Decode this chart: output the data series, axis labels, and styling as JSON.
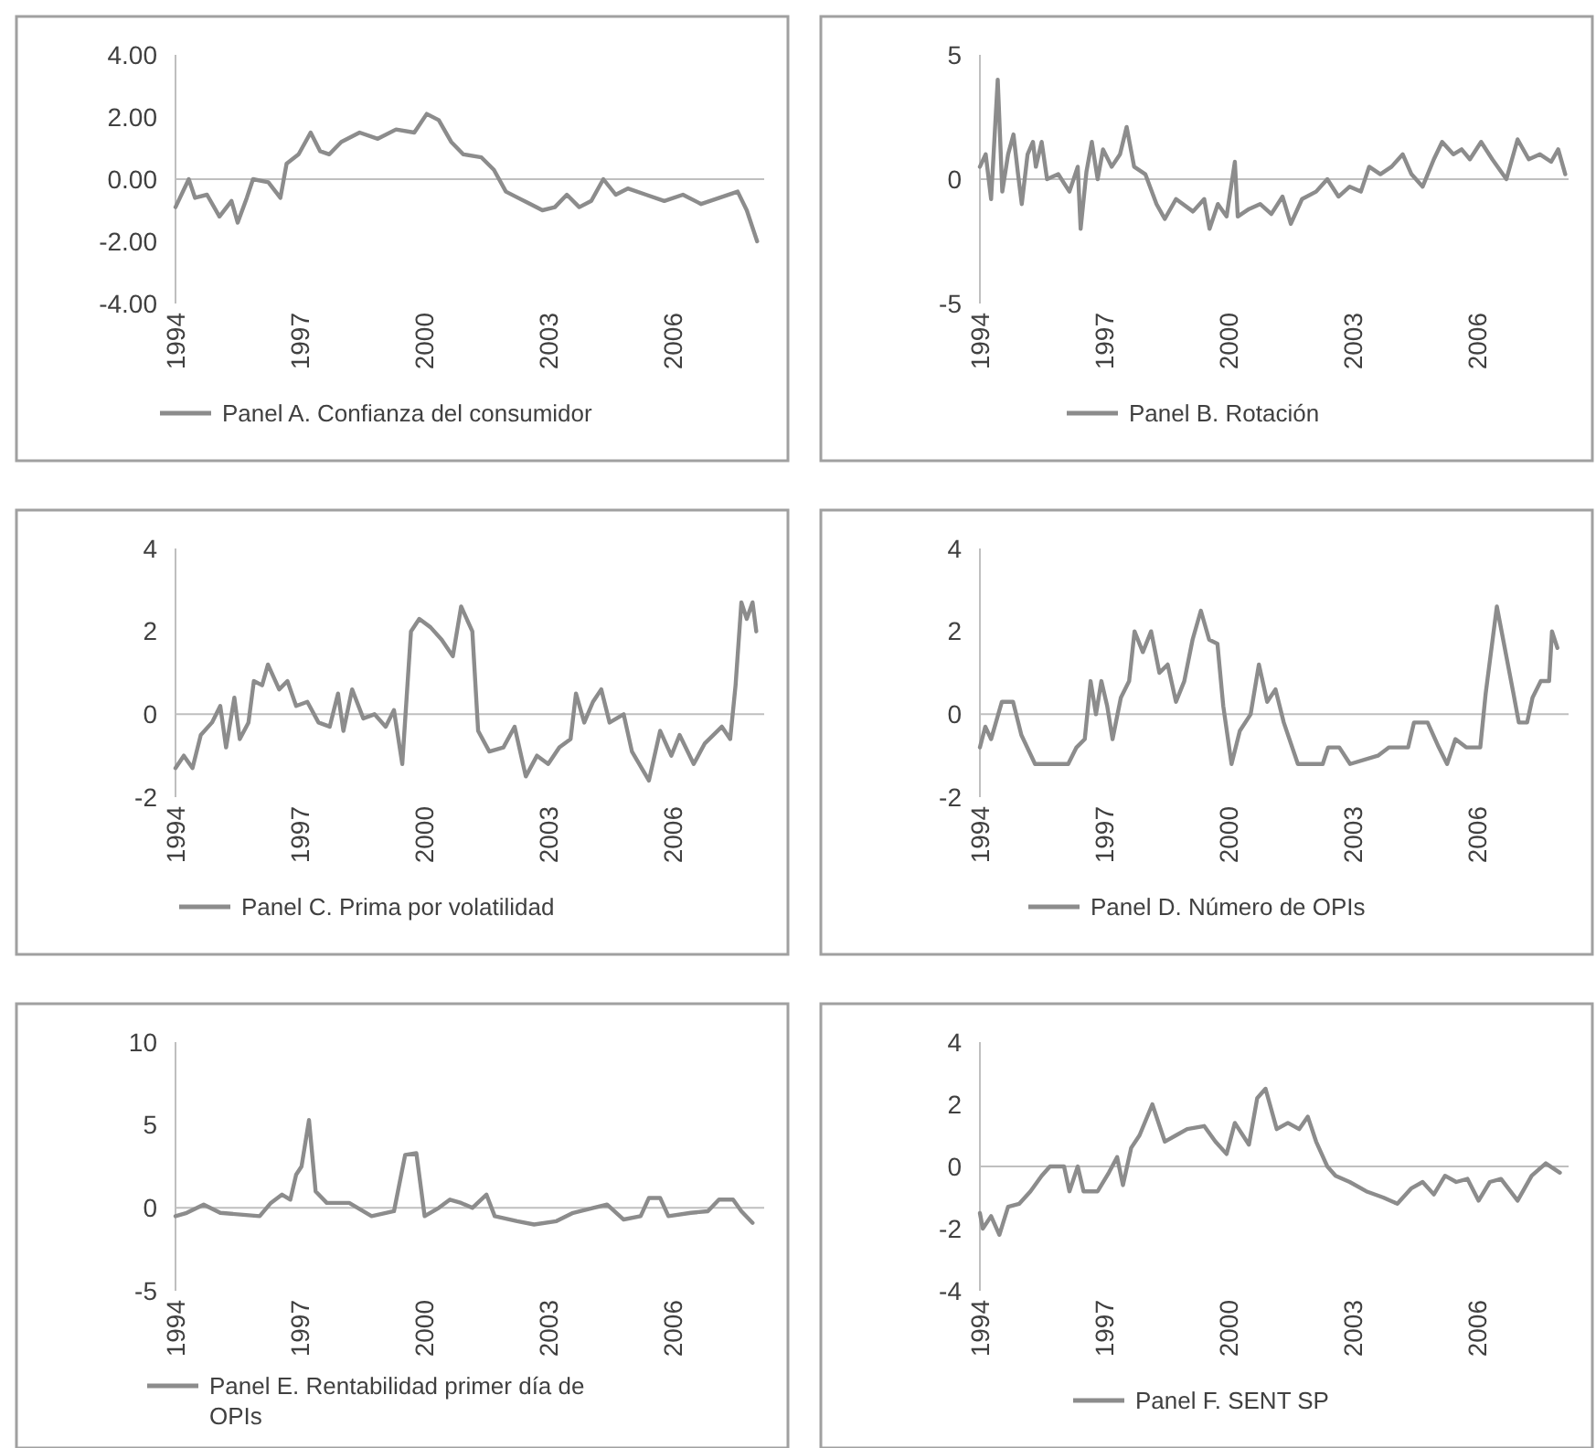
{
  "chart_data": [
    {
      "type": "line",
      "legend": "bottom",
      "xlim": [
        1994,
        2008.2
      ],
      "xticks": [
        1994,
        1997,
        2000,
        2003,
        2006
      ],
      "ylim": [
        -4,
        4
      ],
      "yticks": [
        {
          "value": -4,
          "label": "-4.00"
        },
        {
          "value": -2,
          "label": "-2.00"
        },
        {
          "value": 0,
          "label": "0.00"
        },
        {
          "value": 2,
          "label": "2.00"
        },
        {
          "value": 4,
          "label": "4.00"
        }
      ],
      "series": [
        {
          "name": "Panel A. Confianza del consumidor",
          "color": "#8c8c8c",
          "x": [
            1994.0,
            1994.32,
            1994.47,
            1994.76,
            1995.06,
            1995.35,
            1995.5,
            1995.72,
            1995.87,
            1996.24,
            1996.53,
            1996.68,
            1996.97,
            1997.26,
            1997.49,
            1997.71,
            1998.0,
            1998.44,
            1998.88,
            1999.32,
            1999.76,
            2000.06,
            2000.35,
            2000.65,
            2000.94,
            2001.38,
            2001.68,
            2001.97,
            2002.26,
            2002.56,
            2002.85,
            2003.15,
            2003.44,
            2003.74,
            2004.03,
            2004.32,
            2004.62,
            2004.91,
            2005.35,
            2005.79,
            2006.24,
            2006.68,
            2007.12,
            2007.56,
            2007.78,
            2008.03
          ],
          "values": [
            -0.9,
            0,
            -0.6,
            -0.5,
            -1.2,
            -0.7,
            -1.4,
            -0.6,
            0,
            -0.1,
            -0.6,
            0.5,
            0.8,
            1.5,
            0.9,
            0.8,
            1.2,
            1.5,
            1.3,
            1.6,
            1.5,
            2.1,
            1.9,
            1.2,
            0.8,
            0.7,
            0.3,
            -0.4,
            -0.6,
            -0.8,
            -1.0,
            -0.9,
            -0.5,
            -0.9,
            -0.7,
            0,
            -0.5,
            -0.3,
            -0.5,
            -0.7,
            -0.5,
            -0.8,
            -0.6,
            -0.4,
            -1.0,
            -2.0
          ]
        }
      ]
    },
    {
      "type": "line",
      "legend": "bottom",
      "xlim": [
        1994,
        2008.2
      ],
      "xticks": [
        1994,
        1997,
        2000,
        2003,
        2006
      ],
      "ylim": [
        -5,
        5
      ],
      "yticks": [
        -5,
        0,
        5
      ],
      "series": [
        {
          "name": "Panel B. Rotación",
          "color": "#8c8c8c",
          "x": [
            1994.0,
            1994.14,
            1994.27,
            1994.43,
            1994.54,
            1994.68,
            1994.81,
            1994.92,
            1995.01,
            1995.15,
            1995.28,
            1995.35,
            1995.49,
            1995.62,
            1995.89,
            1996.16,
            1996.36,
            1996.43,
            1996.57,
            1996.7,
            1996.84,
            1996.97,
            1997.18,
            1997.38,
            1997.54,
            1997.72,
            1997.99,
            1998.26,
            1998.46,
            1998.73,
            1999.14,
            1999.41,
            1999.54,
            1999.74,
            1999.95,
            2000.15,
            2000.22,
            2000.49,
            2000.76,
            2001.03,
            2001.3,
            2001.5,
            2001.77,
            2002.11,
            2002.38,
            2002.65,
            2002.92,
            2003.19,
            2003.39,
            2003.66,
            2003.93,
            2004.2,
            2004.41,
            2004.68,
            2004.95,
            2005.15,
            2005.42,
            2005.62,
            2005.82,
            2006.09,
            2006.36,
            2006.7,
            2006.97,
            2007.24,
            2007.51,
            2007.78,
            2007.95,
            2008.12
          ],
          "values": [
            0.5,
            1.0,
            -0.8,
            4.0,
            -0.5,
            1.0,
            1.8,
            0.2,
            -1.0,
            1.0,
            1.5,
            0.5,
            1.5,
            0,
            0.2,
            -0.5,
            0.5,
            -2.0,
            0.3,
            1.5,
            0,
            1.2,
            0.5,
            1.0,
            2.1,
            0.5,
            0.2,
            -1.0,
            -1.6,
            -0.8,
            -1.3,
            -0.8,
            -2.0,
            -1.0,
            -1.5,
            0.7,
            -1.5,
            -1.2,
            -1.0,
            -1.4,
            -0.7,
            -1.8,
            -0.8,
            -0.5,
            0,
            -0.7,
            -0.3,
            -0.5,
            0.5,
            0.2,
            0.5,
            1.0,
            0.2,
            -0.3,
            0.8,
            1.5,
            1.0,
            1.2,
            0.8,
            1.5,
            0.8,
            0,
            1.6,
            0.8,
            1.0,
            0.7,
            1.2,
            0.2
          ]
        }
      ]
    },
    {
      "type": "line",
      "legend": "bottom",
      "xlim": [
        1994,
        2008.2
      ],
      "xticks": [
        1994,
        1997,
        2000,
        2003,
        2006
      ],
      "ylim": [
        -2,
        4
      ],
      "yticks": [
        -2,
        0,
        2,
        4
      ],
      "series": [
        {
          "name": "Panel C. Prima por volatilidad",
          "color": "#8c8c8c",
          "x": [
            1994.0,
            1994.2,
            1994.41,
            1994.61,
            1994.88,
            1995.08,
            1995.22,
            1995.42,
            1995.55,
            1995.76,
            1995.89,
            1996.09,
            1996.23,
            1996.5,
            1996.7,
            1996.91,
            1997.18,
            1997.45,
            1997.72,
            1997.92,
            1998.05,
            1998.26,
            1998.53,
            1998.8,
            1999.07,
            1999.27,
            1999.47,
            1999.68,
            1999.88,
            2000.15,
            2000.42,
            2000.69,
            2000.89,
            2001.16,
            2001.3,
            2001.57,
            2001.91,
            2002.18,
            2002.45,
            2002.72,
            2002.99,
            2003.26,
            2003.53,
            2003.66,
            2003.86,
            2004.07,
            2004.27,
            2004.47,
            2004.81,
            2005.01,
            2005.42,
            2005.69,
            2005.96,
            2006.16,
            2006.5,
            2006.77,
            2007.18,
            2007.38,
            2007.51,
            2007.65,
            2007.78,
            2007.92,
            2008.01
          ],
          "values": [
            -1.3,
            -1.0,
            -1.3,
            -0.5,
            -0.2,
            0.2,
            -0.8,
            0.4,
            -0.6,
            -0.2,
            0.8,
            0.7,
            1.2,
            0.6,
            0.8,
            0.2,
            0.3,
            -0.2,
            -0.3,
            0.5,
            -0.4,
            0.6,
            -0.1,
            0,
            -0.3,
            0.1,
            -1.2,
            2.0,
            2.3,
            2.1,
            1.8,
            1.4,
            2.6,
            2.0,
            -0.4,
            -0.9,
            -0.8,
            -0.3,
            -1.5,
            -1.0,
            -1.2,
            -0.8,
            -0.6,
            0.5,
            -0.2,
            0.3,
            0.6,
            -0.2,
            0,
            -0.9,
            -1.6,
            -0.4,
            -1.0,
            -0.5,
            -1.2,
            -0.7,
            -0.3,
            -0.6,
            0.7,
            2.7,
            2.3,
            2.7,
            2.0
          ]
        }
      ]
    },
    {
      "type": "line",
      "legend": "bottom",
      "xlim": [
        1994,
        2008.2
      ],
      "xticks": [
        1994,
        1997,
        2000,
        2003,
        2006
      ],
      "ylim": [
        -2,
        4
      ],
      "yticks": [
        -2,
        0,
        2,
        4
      ],
      "series": [
        {
          "name": "Panel D. Número de OPIs",
          "color": "#8c8c8c",
          "x": [
            1994.0,
            1994.13,
            1994.27,
            1994.53,
            1994.8,
            1995.0,
            1995.33,
            1996.13,
            1996.33,
            1996.53,
            1996.67,
            1996.8,
            1996.93,
            1997.07,
            1997.2,
            1997.4,
            1997.6,
            1997.73,
            1997.93,
            1998.13,
            1998.33,
            1998.53,
            1998.73,
            1998.93,
            1999.13,
            1999.33,
            1999.53,
            1999.73,
            1999.87,
            2000.07,
            2000.27,
            2000.53,
            2000.73,
            2000.93,
            2001.13,
            2001.33,
            2001.67,
            2002.27,
            2002.4,
            2002.67,
            2002.93,
            2003.6,
            2003.87,
            2004.33,
            2004.47,
            2004.8,
            2005.07,
            2005.27,
            2005.47,
            2005.73,
            2006.07,
            2006.2,
            2006.47,
            2006.87,
            2007.0,
            2007.2,
            2007.33,
            2007.53,
            2007.73,
            2007.8,
            2007.93
          ],
          "values": [
            -0.8,
            -0.3,
            -0.6,
            0.3,
            0.3,
            -0.5,
            -1.2,
            -1.2,
            -0.8,
            -0.6,
            0.8,
            0,
            0.8,
            0.2,
            -0.6,
            0.4,
            0.8,
            2.0,
            1.5,
            2.0,
            1.0,
            1.2,
            0.3,
            0.8,
            1.8,
            2.5,
            1.8,
            1.7,
            0.2,
            -1.2,
            -0.4,
            0,
            1.2,
            0.3,
            0.6,
            -0.2,
            -1.2,
            -1.2,
            -0.8,
            -0.8,
            -1.2,
            -1.0,
            -0.8,
            -0.8,
            -0.2,
            -0.2,
            -0.8,
            -1.2,
            -0.6,
            -0.8,
            -0.8,
            0.5,
            2.6,
            0.5,
            -0.2,
            -0.2,
            0.4,
            0.8,
            0.8,
            2.0,
            1.6
          ]
        }
      ]
    },
    {
      "type": "line",
      "legend": "bottom",
      "xlim": [
        1994,
        2008.2
      ],
      "xticks": [
        1994,
        1997,
        2000,
        2003,
        2006
      ],
      "ylim": [
        -5,
        10
      ],
      "yticks": [
        -5,
        0,
        5,
        10
      ],
      "series": [
        {
          "name": "Panel E. Rentabilidad primer día de OPIs",
          "color": "#8c8c8c",
          "x": [
            1994.0,
            1994.27,
            1994.68,
            1995.08,
            1996.03,
            1996.3,
            1996.57,
            1996.77,
            1996.91,
            1997.04,
            1997.22,
            1997.38,
            1997.65,
            1998.19,
            1998.73,
            1999.27,
            1999.54,
            1999.81,
            2000.01,
            2000.35,
            2000.62,
            2000.89,
            2001.16,
            2001.5,
            2001.7,
            2002.24,
            2002.65,
            2003.19,
            2003.59,
            2004.41,
            2004.81,
            2005.22,
            2005.42,
            2005.69,
            2005.89,
            2006.43,
            2006.84,
            2007.11,
            2007.45,
            2007.65,
            2007.92
          ],
          "values": [
            -0.5,
            -0.3,
            0.2,
            -0.3,
            -0.5,
            0.3,
            0.8,
            0.5,
            2.0,
            2.5,
            5.3,
            1.0,
            0.3,
            0.3,
            -0.5,
            -0.2,
            3.2,
            3.3,
            -0.5,
            0,
            0.5,
            0.3,
            0,
            0.8,
            -0.5,
            -0.8,
            -1.0,
            -0.8,
            -0.3,
            0.2,
            -0.7,
            -0.5,
            0.6,
            0.6,
            -0.5,
            -0.3,
            -0.2,
            0.5,
            0.5,
            -0.2,
            -0.9
          ]
        }
      ]
    },
    {
      "type": "line",
      "legend": "bottom",
      "xlim": [
        1994,
        2008.2
      ],
      "xticks": [
        1994,
        1997,
        2000,
        2003,
        2006
      ],
      "ylim": [
        -4,
        4
      ],
      "yticks": [
        -4,
        -2,
        0,
        2,
        4
      ],
      "series": [
        {
          "name": "Panel F. SENT SP",
          "color": "#8c8c8c",
          "x": [
            1994.0,
            1994.07,
            1994.27,
            1994.47,
            1994.68,
            1994.95,
            1995.22,
            1995.49,
            1995.69,
            1996.03,
            1996.16,
            1996.36,
            1996.5,
            1996.84,
            1997.11,
            1997.31,
            1997.45,
            1997.65,
            1997.85,
            1998.16,
            1998.46,
            1998.73,
            1999.0,
            1999.41,
            1999.68,
            1999.95,
            2000.15,
            2000.49,
            2000.69,
            2000.89,
            2001.16,
            2001.43,
            2001.7,
            2001.91,
            2002.11,
            2002.38,
            2002.58,
            2002.92,
            2003.32,
            2003.73,
            2004.07,
            2004.41,
            2004.68,
            2004.95,
            2005.22,
            2005.49,
            2005.76,
            2006.03,
            2006.3,
            2006.57,
            2006.97,
            2007.31,
            2007.65,
            2007.99
          ],
          "values": [
            -1.5,
            -2.0,
            -1.6,
            -2.2,
            -1.3,
            -1.2,
            -0.8,
            -0.3,
            0,
            0,
            -0.8,
            0,
            -0.8,
            -0.8,
            -0.2,
            0.3,
            -0.6,
            0.6,
            1.0,
            2.0,
            0.8,
            1.0,
            1.2,
            1.3,
            0.8,
            0.4,
            1.4,
            0.7,
            2.2,
            2.5,
            1.2,
            1.4,
            1.2,
            1.6,
            0.8,
            0,
            -0.3,
            -0.5,
            -0.8,
            -1.0,
            -1.2,
            -0.7,
            -0.5,
            -0.9,
            -0.3,
            -0.5,
            -0.4,
            -1.1,
            -0.5,
            -0.4,
            -1.1,
            -0.3,
            0.1,
            -0.2
          ]
        }
      ]
    }
  ]
}
